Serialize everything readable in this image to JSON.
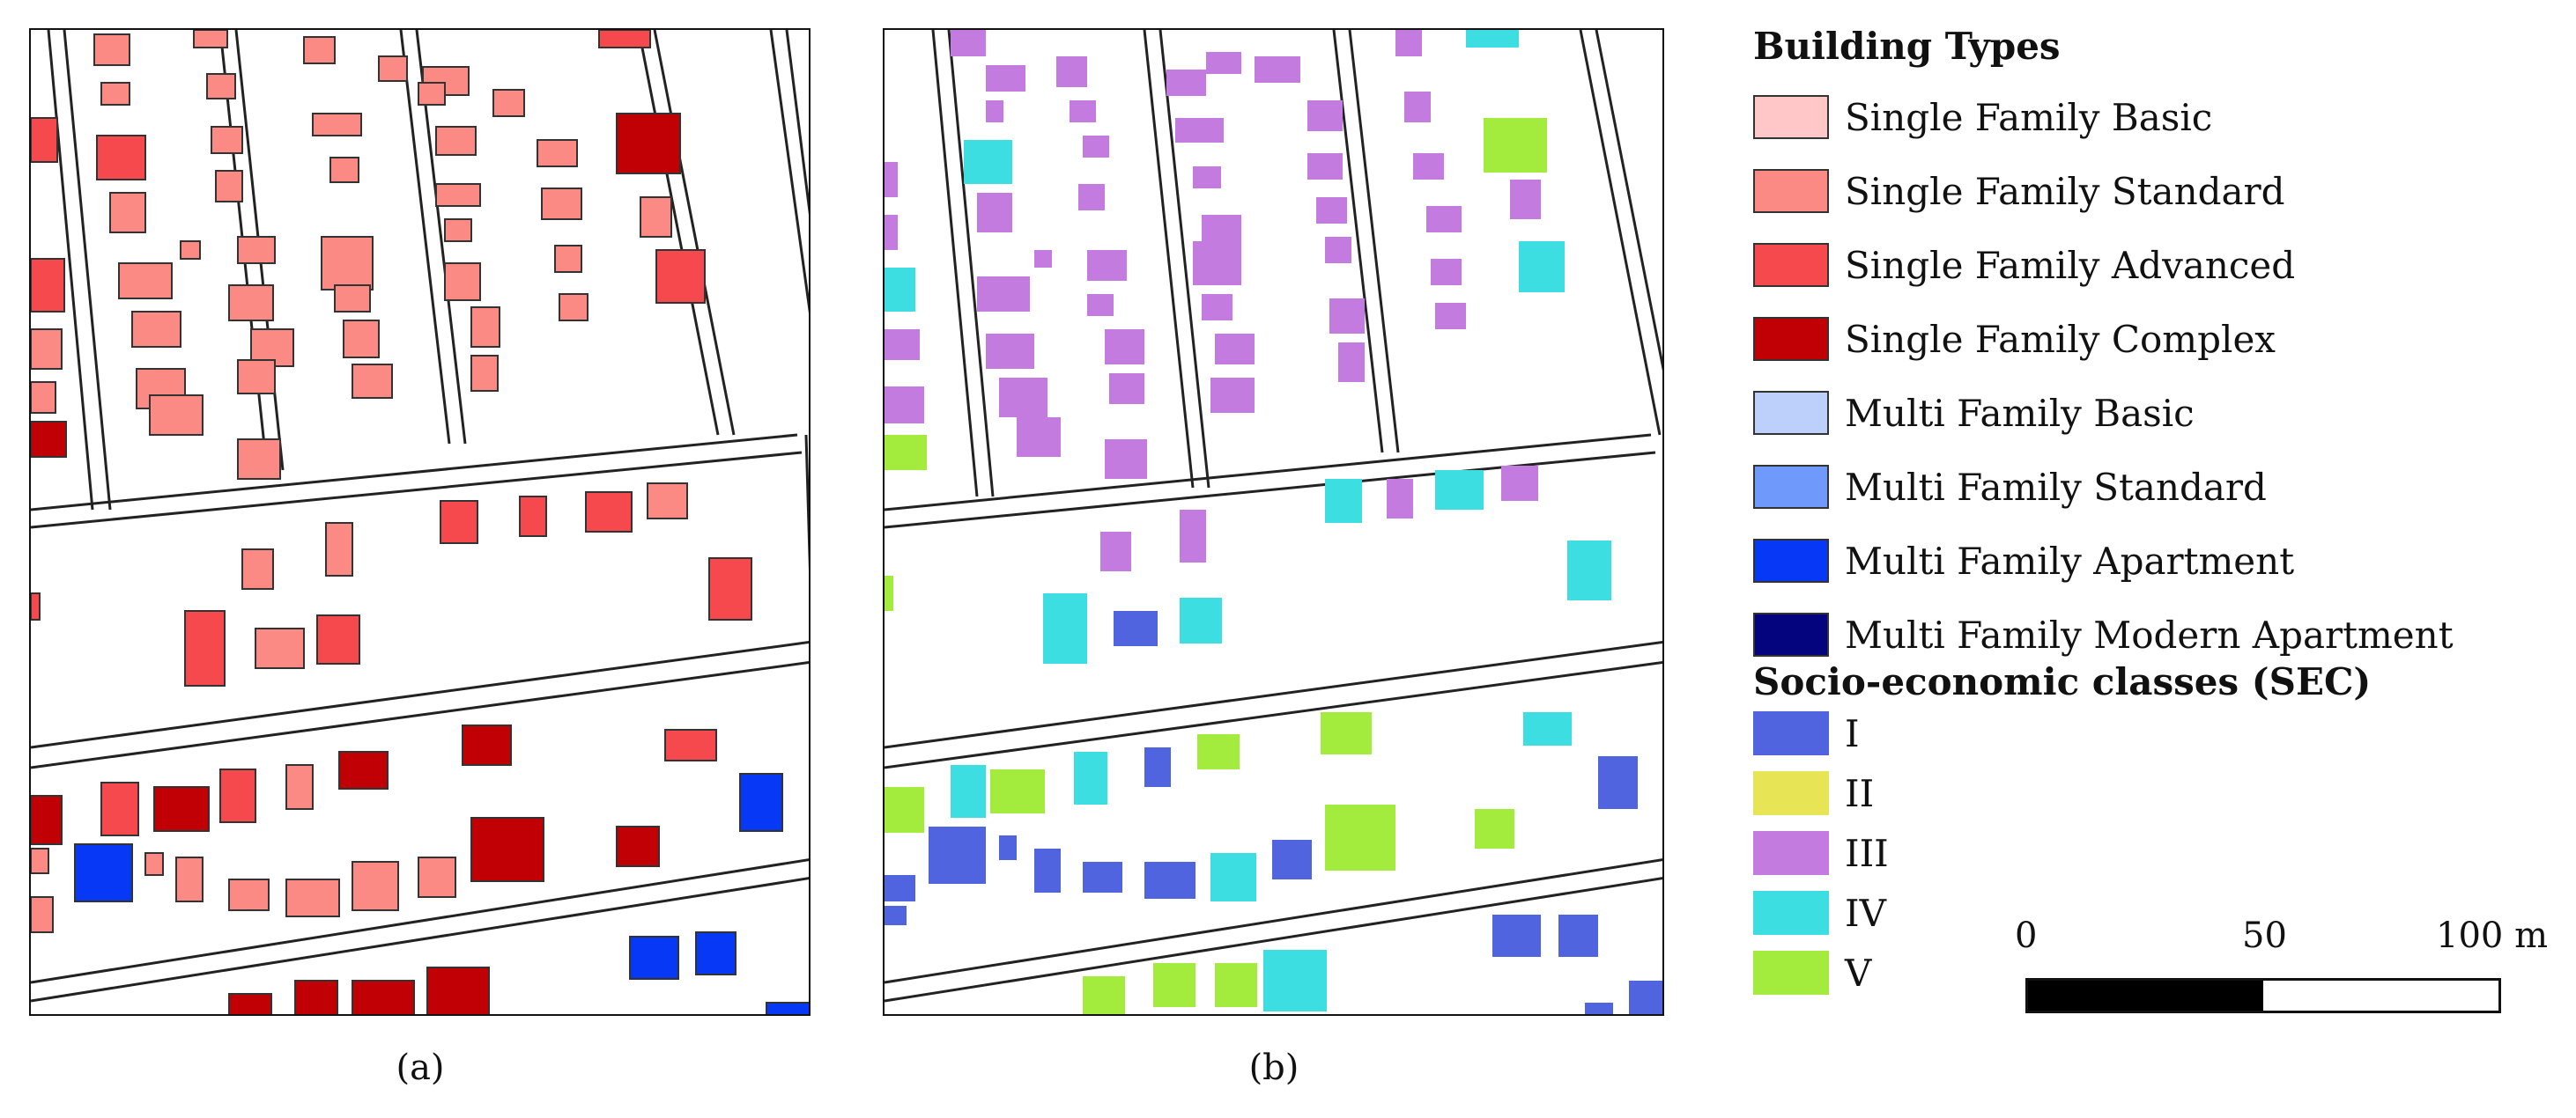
{
  "legend": {
    "building_title": "Building Types",
    "building_types": [
      {
        "label": "Single Family Basic",
        "color": "#ffc7c7"
      },
      {
        "label": "Single Family Standard",
        "color": "#fb8a84"
      },
      {
        "label": "Single Family Advanced",
        "color": "#f6494d"
      },
      {
        "label": "Single Family Complex",
        "color": "#c00004"
      },
      {
        "label": "Multi Family Basic",
        "color": "#bdd0fb"
      },
      {
        "label": "Multi Family Standard",
        "color": "#6f99fb"
      },
      {
        "label": "Multi Family Apartment",
        "color": "#0638f5"
      },
      {
        "label": "Multi Family Modern Apartment",
        "color": "#04047f"
      }
    ],
    "sec_title": "Socio-economic classes (SEC)",
    "sec_classes": [
      {
        "label": "I",
        "color": "#5064df"
      },
      {
        "label": "II",
        "color": "#e7e455"
      },
      {
        "label": "III",
        "color": "#c47be0"
      },
      {
        "label": "IV",
        "color": "#3ddee1"
      },
      {
        "label": "V",
        "color": "#a3ec3e"
      }
    ]
  },
  "scalebar": {
    "tick_labels": [
      "0",
      "50",
      "100 m"
    ]
  },
  "panels": {
    "a_label": "(a)",
    "b_label": "(b)"
  },
  "colors": {
    "road_line": "#222222",
    "building_outline": "#333333"
  }
}
